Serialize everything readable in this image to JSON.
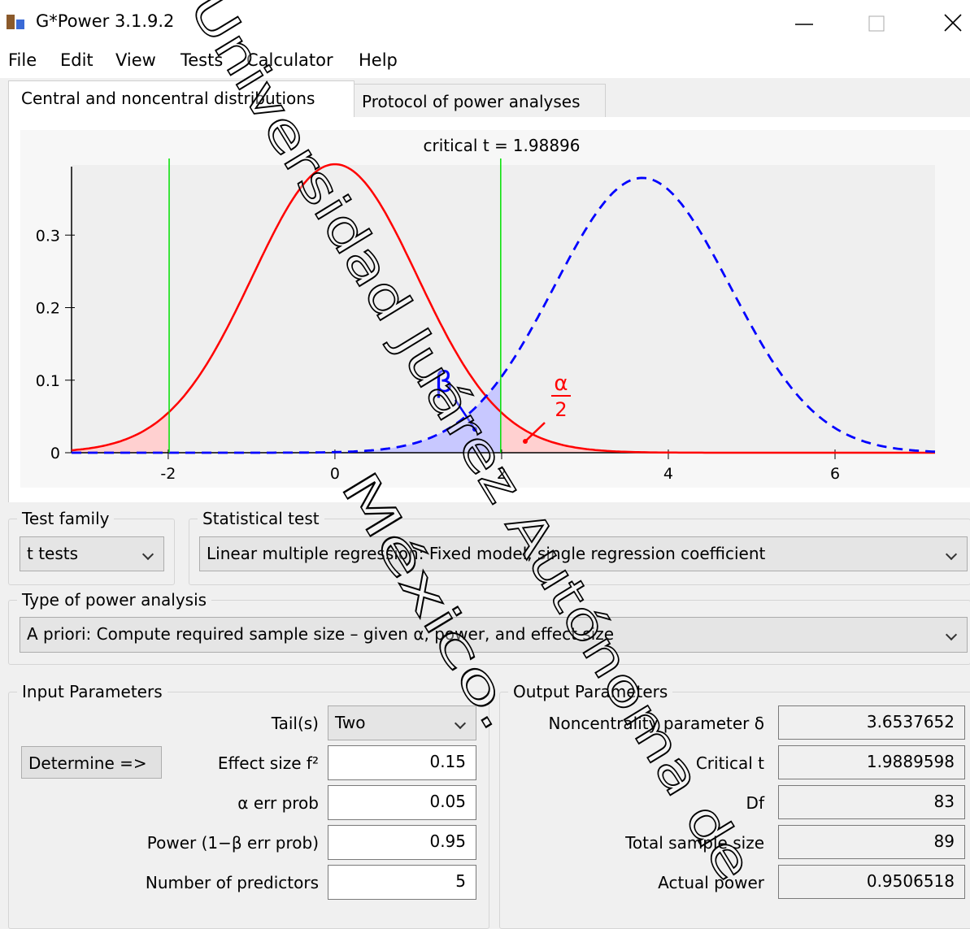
{
  "window": {
    "title": "G*Power 3.1.9.2"
  },
  "menu": [
    "File",
    "Edit",
    "View",
    "Tests",
    "Calculator",
    "Help"
  ],
  "tabs": [
    "Central and noncentral distributions",
    "Protocol of power analyses"
  ],
  "chart_data": {
    "type": "t-distributions",
    "annotation": "critical t =",
    "critical_t": 1.98896,
    "xlim": [
      -3.16,
      7.2
    ],
    "ylim": [
      0,
      0.4
    ],
    "xticks": [
      -2,
      0,
      2,
      4,
      6
    ],
    "yticks": [
      0,
      0.1,
      0.2,
      0.3
    ],
    "beta_label": "β",
    "alpha_label": "α",
    "alpha_denominator": "2"
  },
  "test_family": {
    "label": "Test family",
    "value": "t tests"
  },
  "statistical_test": {
    "label": "Statistical test",
    "value": "Linear multiple regression: Fixed model, single regression coefficient"
  },
  "type_of_power_analysis": {
    "label": "Type of power analysis",
    "value": "A priori: Compute required sample size – given α, power, and effect size"
  },
  "input_parameters": {
    "title": "Input Parameters",
    "button": "Determine =>",
    "rows": [
      {
        "label": "Tail(s)",
        "value": "Two"
      },
      {
        "label": "Effect size f²",
        "value": 0.15
      },
      {
        "label": "α err prob",
        "value": 0.05
      },
      {
        "label": "Power (1−β err prob)",
        "value": 0.95
      },
      {
        "label": "Number of predictors",
        "value": 5
      }
    ]
  },
  "output_parameters": {
    "title": "Output Parameters",
    "rows": [
      {
        "label": "Noncentrality parameter δ",
        "value": 3.6537652
      },
      {
        "label": "Critical t",
        "value": 1.9889598
      },
      {
        "label": "Df",
        "value": 83
      },
      {
        "label": "Total sample size",
        "value": 89
      },
      {
        "label": "Actual power",
        "value": 0.9506518
      }
    ]
  },
  "watermark": [
    "Universidad Juárez Autónoma de",
    "México."
  ]
}
